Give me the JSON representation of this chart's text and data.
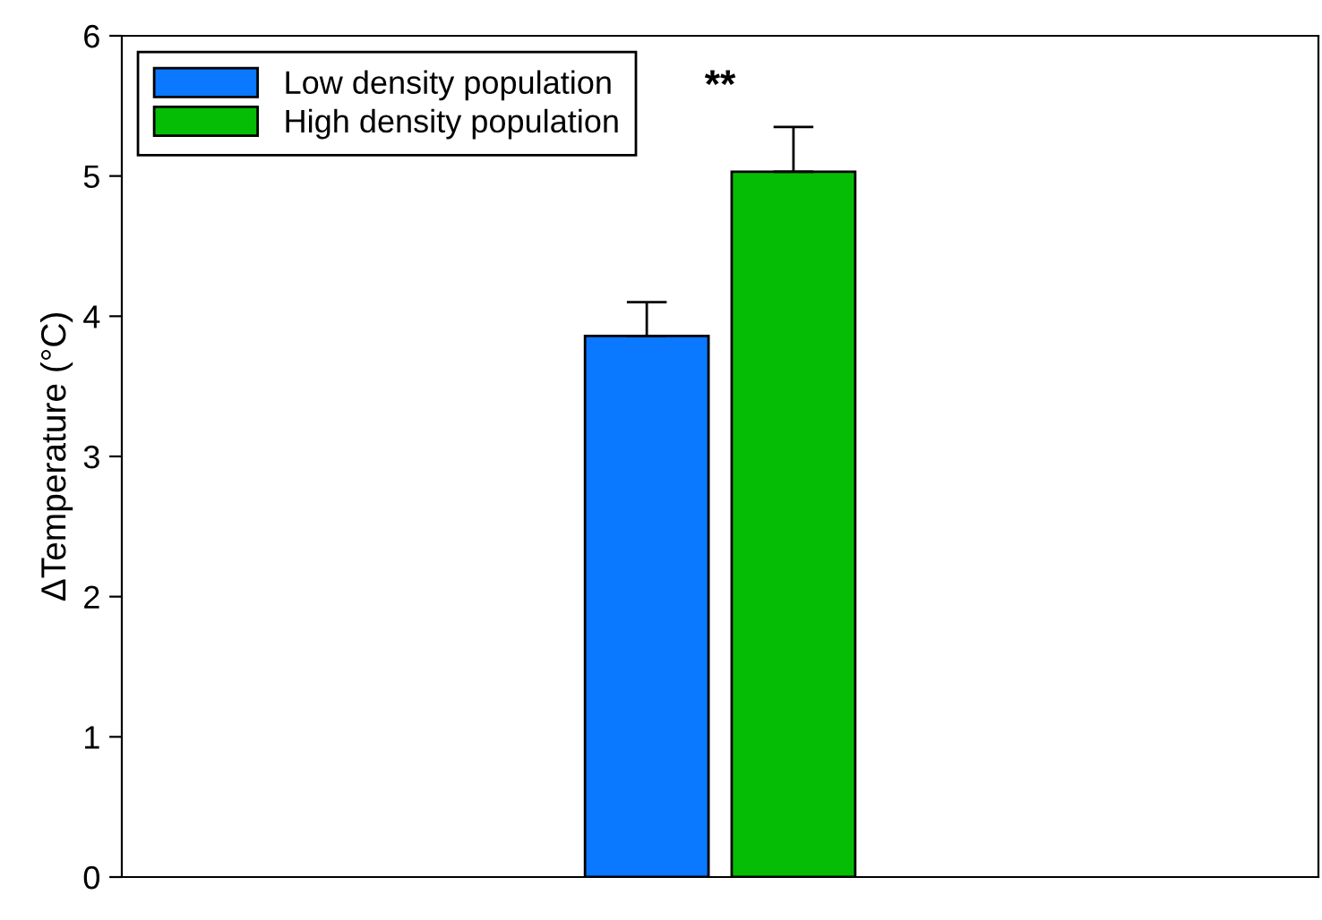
{
  "chart_data": {
    "type": "bar",
    "ylabel": "ΔTemperature (°C)",
    "categories": [
      null
    ],
    "series": [
      {
        "name": "Low density population",
        "color": "#0a78ff",
        "values": [
          3.86
        ],
        "errors": [
          [
            3.86,
            4.1
          ]
        ]
      },
      {
        "name": "High density population",
        "color": "#05bd05",
        "values": [
          5.03
        ],
        "errors": [
          [
            5.03,
            5.35
          ]
        ]
      }
    ],
    "ylim": [
      0,
      6
    ],
    "yticks": [
      0,
      1,
      2,
      3,
      4,
      5,
      6
    ],
    "grid": false,
    "legend": "top left",
    "tick_labels": "y",
    "annotations": [
      "**"
    ]
  }
}
